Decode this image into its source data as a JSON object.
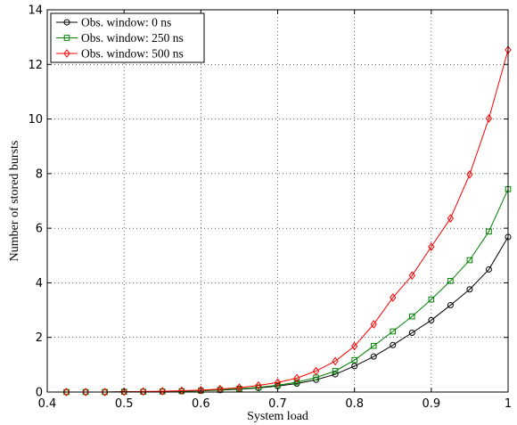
{
  "chart_data": {
    "type": "line",
    "title": "",
    "xlabel": "System load",
    "ylabel": "Number of stored bursts",
    "xlim": [
      0.4,
      1.0
    ],
    "ylim": [
      0,
      14
    ],
    "xticks": [
      0.4,
      0.5,
      0.6,
      0.7,
      0.8,
      0.9,
      1.0
    ],
    "xtick_labels": [
      "0.4",
      "0.5",
      "0.6",
      "0.7",
      "0.8",
      "0.9",
      "1"
    ],
    "yticks": [
      0,
      2,
      4,
      6,
      8,
      10,
      12,
      14
    ],
    "ytick_labels": [
      "0",
      "2",
      "4",
      "6",
      "8",
      "10",
      "12",
      "14"
    ],
    "grid": true,
    "legend_position": "top-left",
    "x": [
      0.425,
      0.45,
      0.475,
      0.5,
      0.525,
      0.55,
      0.575,
      0.6,
      0.625,
      0.65,
      0.675,
      0.7,
      0.725,
      0.75,
      0.775,
      0.8,
      0.825,
      0.85,
      0.875,
      0.9,
      0.925,
      0.95,
      0.975,
      1.0
    ],
    "series": [
      {
        "name": "Obs. window: 0 ns",
        "color": "#000000",
        "marker": "circle",
        "values": [
          0.0,
          0.0,
          0.0,
          0.01,
          0.01,
          0.02,
          0.03,
          0.05,
          0.07,
          0.1,
          0.15,
          0.22,
          0.31,
          0.45,
          0.65,
          0.95,
          1.3,
          1.72,
          2.17,
          2.63,
          3.18,
          3.76,
          4.49,
          5.68
        ]
      },
      {
        "name": "Obs. window: 250 ns",
        "color": "#008000",
        "marker": "square",
        "values": [
          0.0,
          0.0,
          0.0,
          0.01,
          0.01,
          0.02,
          0.03,
          0.05,
          0.08,
          0.12,
          0.17,
          0.25,
          0.36,
          0.53,
          0.77,
          1.17,
          1.69,
          2.22,
          2.77,
          3.39,
          4.07,
          4.83,
          5.88,
          7.43
        ]
      },
      {
        "name": "Obs. window: 500 ns",
        "color": "#ff0000",
        "marker": "diamond",
        "values": [
          0.0,
          0.0,
          0.0,
          0.01,
          0.02,
          0.03,
          0.05,
          0.07,
          0.11,
          0.16,
          0.24,
          0.35,
          0.51,
          0.77,
          1.13,
          1.68,
          2.48,
          3.46,
          4.27,
          5.32,
          6.36,
          7.97,
          10.02,
          12.53
        ]
      }
    ]
  }
}
